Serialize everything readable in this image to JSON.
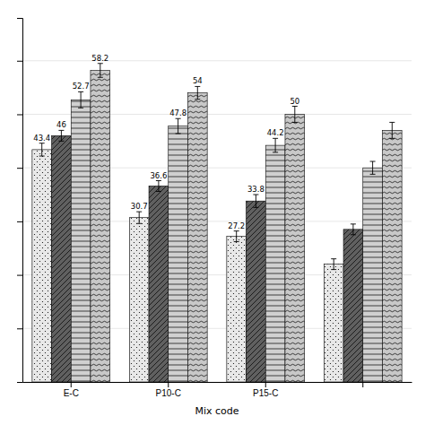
{
  "chart_data": {
    "type": "bar",
    "x_label": "Mix code",
    "categories": [
      "E-C",
      "P10-C",
      "P15-C",
      null
    ],
    "series": [
      {
        "color": "#e8e8e8",
        "values": [
          43.4,
          30.7,
          27.2,
          22.0
        ],
        "errors": [
          1.2,
          1.1,
          1.0,
          1.0
        ],
        "value_labels": [
          "43.4",
          "30.7",
          "27.2",
          null
        ]
      },
      {
        "color": "#606060",
        "values": [
          46.0,
          36.6,
          33.8,
          28.5
        ],
        "errors": [
          1.0,
          1.0,
          1.2,
          1.0
        ],
        "value_labels": [
          "46",
          "36.6",
          "33.8",
          null
        ]
      },
      {
        "color": "#d0d0d0",
        "values": [
          52.7,
          47.8,
          44.2,
          40.0
        ],
        "errors": [
          1.5,
          1.4,
          1.3,
          1.2
        ],
        "value_labels": [
          "52.7",
          "47.8",
          "44.2",
          null
        ]
      },
      {
        "color": "#c8c8c8",
        "values": [
          58.2,
          54.0,
          50.0,
          47.0
        ],
        "errors": [
          1.3,
          1.2,
          1.5,
          1.5
        ],
        "value_labels": [
          "58.2",
          "54",
          "50",
          null
        ]
      }
    ],
    "ylim": [
      0,
      68
    ],
    "yticks": [
      0,
      10,
      20,
      30,
      40,
      50,
      60
    ],
    "grid": true,
    "data_labels": true,
    "tick_labels": "x"
  }
}
